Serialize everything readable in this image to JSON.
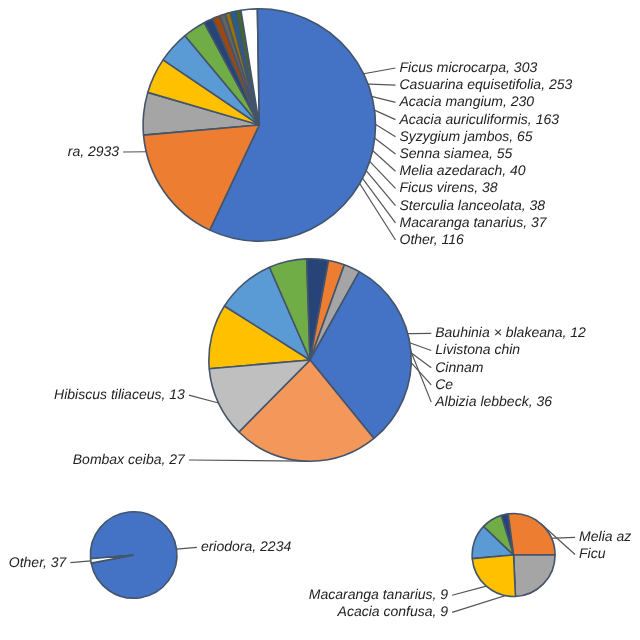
{
  "chart_data": [
    {
      "type": "pie",
      "categories": [
        "Ficus microcarpa",
        "Casuarina equisetifolia",
        "Acacia mangium",
        "Acacia auriculiformis",
        "Syzygium jambos",
        "Senna siamea",
        "Melia azedarach",
        "Ficus virens",
        "Sterculia lanceolata",
        "Macaranga tanarius",
        "Other",
        "ra",
        null
      ],
      "values": [
        303,
        253,
        230,
        163,
        65,
        55,
        40,
        38,
        38,
        37,
        116,
        2933,
        850
      ],
      "value_labels": [
        "303",
        "253",
        "230",
        "163",
        "65",
        "55",
        "40",
        "38",
        "38",
        "37",
        "116",
        "2933",
        null
      ],
      "colors": [
        "#a5a5a5",
        "#ffc000",
        "#5b9bd5",
        "#70ad47",
        "#264478",
        "#9e480e",
        "#636363",
        "#997300",
        "#255e91",
        "#43682b",
        "#ffffff",
        "#4472c4",
        "#ed7d31"
      ]
    },
    {
      "type": "pie",
      "categories": [
        "Bauhinia × blakeana",
        "Livistona chin",
        "Cinnam",
        "Ce",
        null,
        null,
        "Albizia lebbeck",
        "Bombax ceiba",
        "Hibiscus tiliaceus"
      ],
      "values": [
        12,
        11,
        7,
        4,
        3,
        3,
        36,
        27,
        13
      ],
      "value_labels": [
        "12",
        null,
        null,
        null,
        null,
        null,
        "36",
        "27",
        "13"
      ],
      "colors": [
        "#ffc000",
        "#5b9bd5",
        "#70ad47",
        "#264478",
        "#ed7d31",
        "#a5a5a5",
        "#4472c4",
        "#f4975a",
        "#bfbfbf"
      ]
    },
    {
      "type": "pie",
      "categories": [
        "eriodora",
        "Other"
      ],
      "values": [
        2234,
        37
      ],
      "value_labels": [
        "2234",
        "37"
      ],
      "colors": [
        "#4472c4",
        "#ffffff"
      ]
    },
    {
      "type": "pie",
      "categories": [
        "Melia az",
        null,
        null,
        "Ficu",
        "Acacia confusa",
        "Macaranga tanarius"
      ],
      "values": [
        5,
        3,
        1,
        10,
        9,
        9
      ],
      "value_labels": [
        null,
        null,
        null,
        null,
        "9",
        "9"
      ],
      "colors": [
        "#5b9bd5",
        "#70ad47",
        "#264478",
        "#ed7d31",
        "#a5a5a5",
        "#ffc000"
      ]
    }
  ]
}
